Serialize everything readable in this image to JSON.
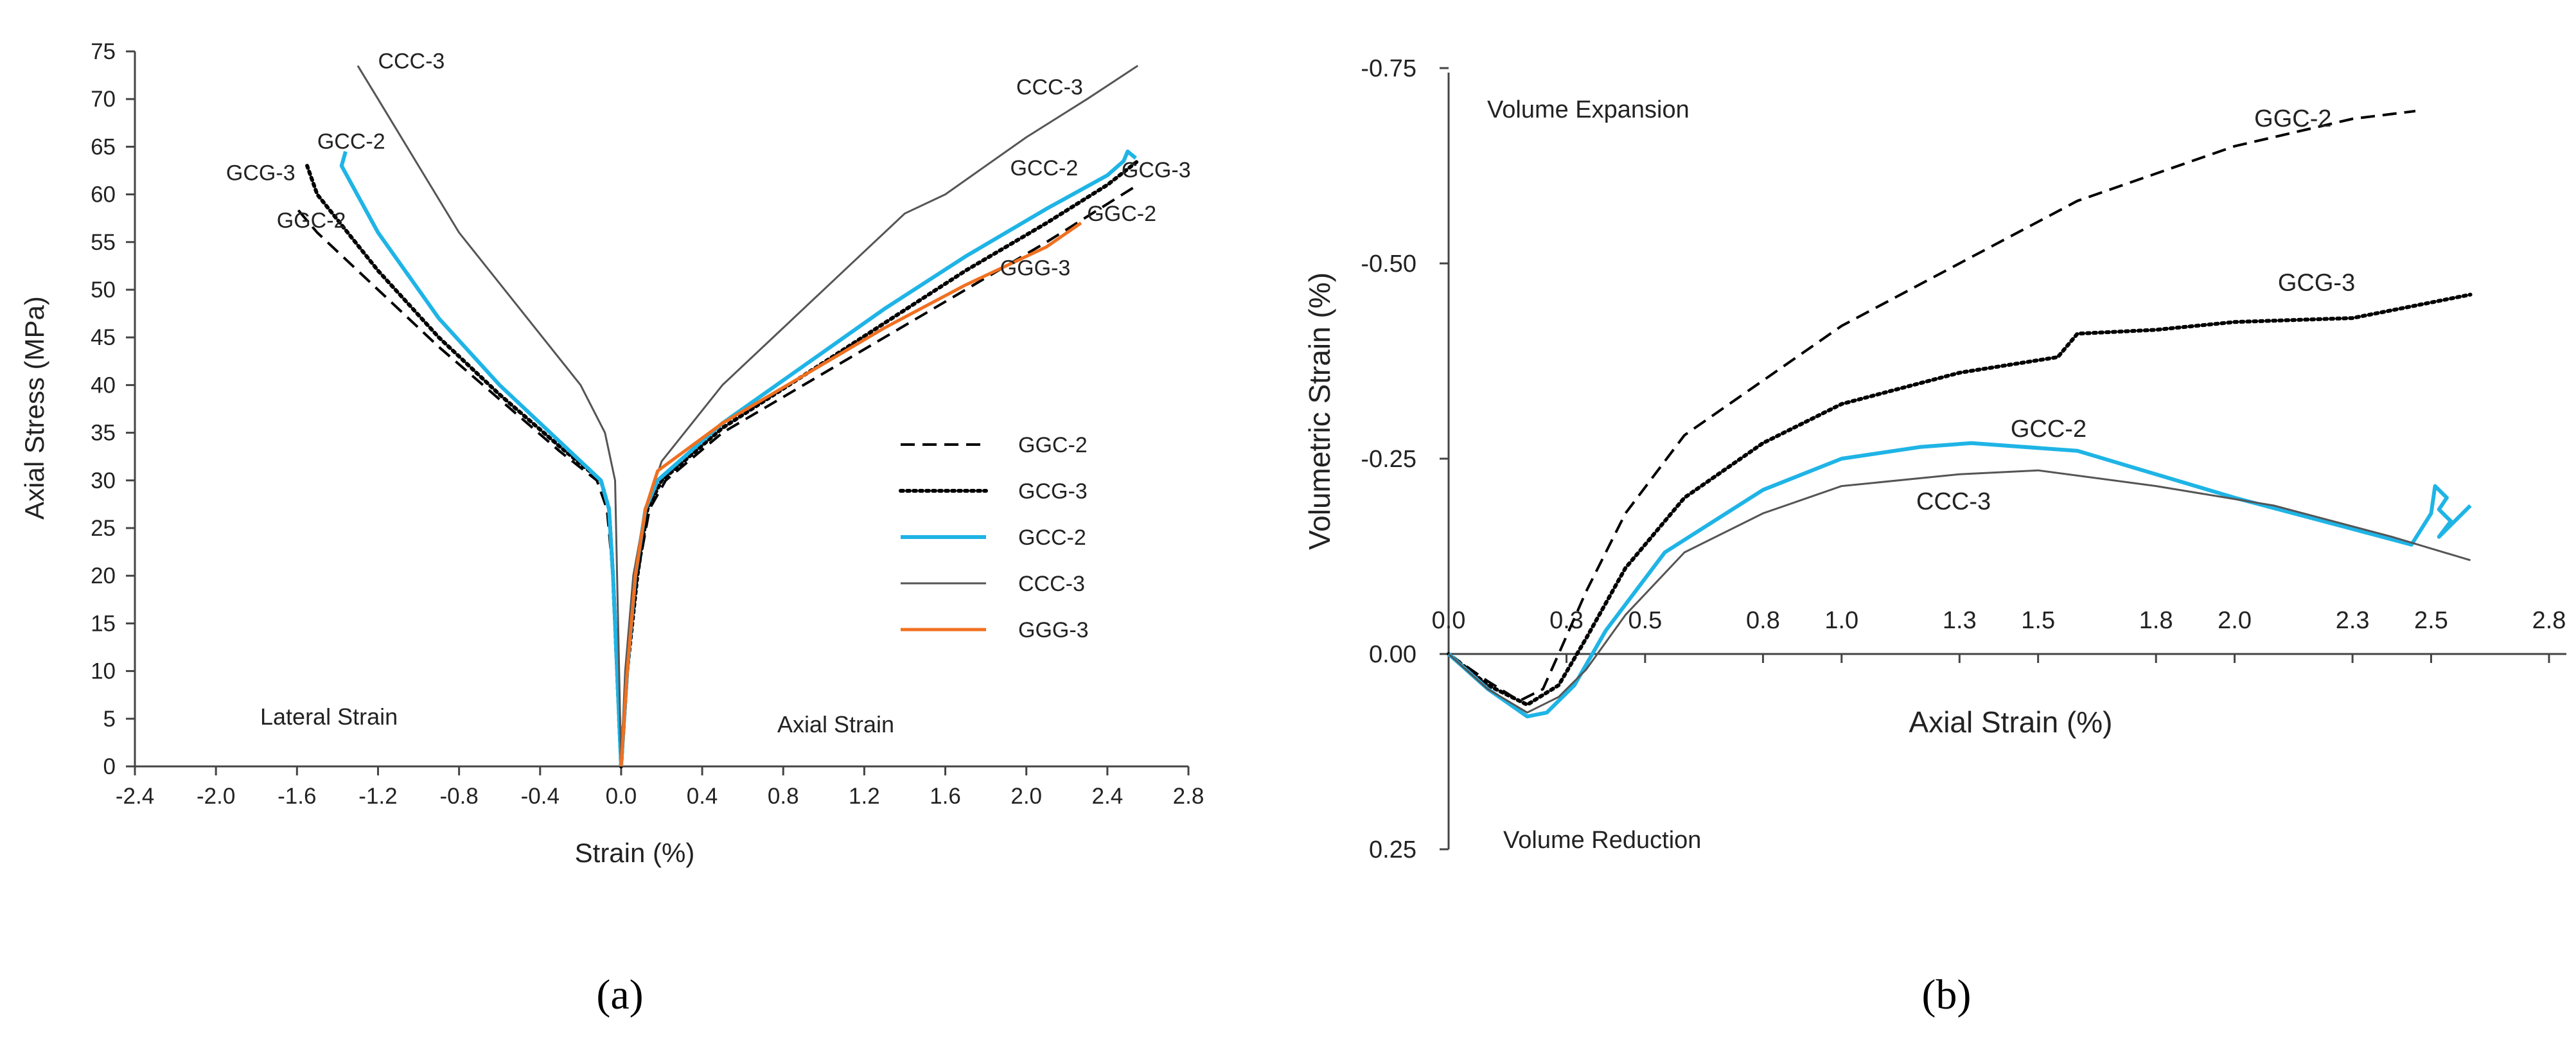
{
  "captions": {
    "a": "(a)",
    "b": "(b)"
  },
  "chart_data": [
    {
      "id": "a",
      "type": "line",
      "title": "",
      "xlabel": "Strain  (%)",
      "ylabel": "Axial Stress  (MPa)",
      "xlim": [
        -2.4,
        2.8
      ],
      "ylim": [
        0,
        75
      ],
      "xticks": [
        "-2.4",
        "-2.0",
        "-1.6",
        "-1.2",
        "-0.8",
        "-0.4",
        "0.0",
        "0.4",
        "0.8",
        "1.2",
        "1.6",
        "2.0",
        "2.4",
        "2.8"
      ],
      "yticks": [
        "0",
        "5",
        "10",
        "15",
        "20",
        "25",
        "30",
        "35",
        "40",
        "45",
        "50",
        "55",
        "60",
        "65",
        "70",
        "75"
      ],
      "grid": false,
      "legend": [
        "GGC-2",
        "GCG-3",
        "GCC-2",
        "CCC-3",
        "GGG-3"
      ],
      "legend_position": "center-right",
      "region_labels": {
        "left": "Lateral Strain",
        "right": "Axial Strain"
      },
      "series": [
        {
          "name": "GGC-2",
          "style": "dashed",
          "color": "#000000",
          "label_left": "GGC-2",
          "label_right": "GGC-2",
          "lateral": [
            [
              0,
              0
            ],
            [
              -0.02,
              10
            ],
            [
              -0.04,
              20
            ],
            [
              -0.07,
              27
            ],
            [
              -0.12,
              30
            ],
            [
              -0.3,
              33
            ],
            [
              -0.6,
              38.5
            ],
            [
              -0.9,
              44
            ],
            [
              -1.2,
              50
            ],
            [
              -1.5,
              56
            ],
            [
              -1.6,
              58.5
            ]
          ],
          "axial": [
            [
              0,
              0
            ],
            [
              0.03,
              10
            ],
            [
              0.08,
              20
            ],
            [
              0.14,
              27
            ],
            [
              0.22,
              30
            ],
            [
              0.5,
              35
            ],
            [
              0.9,
              40
            ],
            [
              1.3,
              45
            ],
            [
              1.7,
              50
            ],
            [
              2.1,
              55
            ],
            [
              2.4,
              59
            ],
            [
              2.55,
              61
            ]
          ]
        },
        {
          "name": "GCG-3",
          "style": "dotted",
          "color": "#000000",
          "label_left": "GCG-3",
          "label_right": "GCG-3",
          "lateral": [
            [
              0,
              0
            ],
            [
              -0.02,
              10
            ],
            [
              -0.04,
              20
            ],
            [
              -0.06,
              27
            ],
            [
              -0.1,
              30
            ],
            [
              -0.3,
              33.5
            ],
            [
              -0.6,
              39
            ],
            [
              -0.9,
              45
            ],
            [
              -1.2,
              52
            ],
            [
              -1.5,
              60
            ],
            [
              -1.55,
              63
            ]
          ],
          "axial": [
            [
              0,
              0
            ],
            [
              0.03,
              10
            ],
            [
              0.08,
              20
            ],
            [
              0.13,
              27
            ],
            [
              0.2,
              30
            ],
            [
              0.5,
              35.5
            ],
            [
              0.9,
              41
            ],
            [
              1.3,
              46.5
            ],
            [
              1.7,
              52
            ],
            [
              2.1,
              57
            ],
            [
              2.4,
              61
            ],
            [
              2.55,
              63.5
            ]
          ]
        },
        {
          "name": "GCC-2",
          "style": "solid",
          "color": "#1fb4e6",
          "label_left": "GCC-2",
          "label_right": "GCC-2",
          "lateral": [
            [
              0,
              0
            ],
            [
              -0.02,
              10
            ],
            [
              -0.04,
              20
            ],
            [
              -0.06,
              27
            ],
            [
              -0.1,
              30
            ],
            [
              -0.3,
              34
            ],
            [
              -0.6,
              40
            ],
            [
              -0.9,
              47
            ],
            [
              -1.2,
              56
            ],
            [
              -1.38,
              63
            ],
            [
              -1.36,
              64.5
            ]
          ],
          "axial": [
            [
              0,
              0
            ],
            [
              0.03,
              10
            ],
            [
              0.07,
              20
            ],
            [
              0.12,
              27
            ],
            [
              0.18,
              30
            ],
            [
              0.5,
              36
            ],
            [
              0.9,
              42
            ],
            [
              1.3,
              48
            ],
            [
              1.7,
              53.5
            ],
            [
              2.1,
              58.5
            ],
            [
              2.4,
              62
            ],
            [
              2.48,
              63.5
            ],
            [
              2.5,
              64.5
            ],
            [
              2.54,
              63.8
            ]
          ]
        },
        {
          "name": "CCC-3",
          "style": "solid",
          "color": "#555555",
          "label_left": "CCC-3",
          "label_right": "CCC-3",
          "lateral": [
            [
              0,
              0
            ],
            [
              -0.01,
              10
            ],
            [
              -0.02,
              20
            ],
            [
              -0.03,
              30
            ],
            [
              -0.08,
              35
            ],
            [
              -0.2,
              40
            ],
            [
              -0.5,
              48
            ],
            [
              -0.8,
              56
            ],
            [
              -1.0,
              63
            ],
            [
              -1.2,
              70
            ],
            [
              -1.3,
              73.5
            ]
          ],
          "axial": [
            [
              0,
              0
            ],
            [
              0.02,
              10
            ],
            [
              0.06,
              20
            ],
            [
              0.12,
              27
            ],
            [
              0.2,
              32
            ],
            [
              0.5,
              40
            ],
            [
              0.8,
              46
            ],
            [
              1.1,
              52
            ],
            [
              1.4,
              58
            ],
            [
              1.6,
              60
            ],
            [
              2.0,
              66
            ],
            [
              2.3,
              70
            ],
            [
              2.55,
              73.5
            ]
          ]
        },
        {
          "name": "GGG-3",
          "style": "solid",
          "color": "#f07020",
          "label_left": "",
          "label_right": "GGG-3",
          "lateral": [],
          "axial": [
            [
              0,
              0
            ],
            [
              0.03,
              10
            ],
            [
              0.07,
              20
            ],
            [
              0.12,
              27
            ],
            [
              0.18,
              31
            ],
            [
              0.5,
              36
            ],
            [
              0.9,
              41
            ],
            [
              1.3,
              46
            ],
            [
              1.7,
              50.5
            ],
            [
              2.1,
              54.5
            ],
            [
              2.27,
              57
            ]
          ]
        }
      ]
    },
    {
      "id": "b",
      "type": "line",
      "title": "",
      "xlabel": "Axial Strain  (%)",
      "ylabel": "Volumetric  Strain  (%)",
      "xlim": [
        0,
        2.8
      ],
      "ylim": [
        0.25,
        -0.75
      ],
      "xticks": [
        "0.0",
        "0.3",
        "0.5",
        "0.8",
        "1.0",
        "1.3",
        "1.5",
        "1.8",
        "2.0",
        "2.3",
        "2.5",
        "2.8"
      ],
      "yticks": [
        "0.25",
        "0.00",
        "-0.25",
        "-0.50",
        "-0.75"
      ],
      "grid": false,
      "annotations": {
        "top": "Volume Expansion",
        "bottom": "Volume Reduction"
      },
      "series": [
        {
          "name": "GGC-2",
          "style": "dashed",
          "color": "#000000",
          "label": "GGC-2",
          "points": [
            [
              0,
              0
            ],
            [
              0.1,
              0.035
            ],
            [
              0.18,
              0.06
            ],
            [
              0.24,
              0.045
            ],
            [
              0.28,
              0
            ],
            [
              0.35,
              -0.08
            ],
            [
              0.45,
              -0.18
            ],
            [
              0.6,
              -0.28
            ],
            [
              0.8,
              -0.35
            ],
            [
              1.0,
              -0.42
            ],
            [
              1.3,
              -0.5
            ],
            [
              1.6,
              -0.58
            ],
            [
              2.0,
              -0.65
            ],
            [
              2.3,
              -0.685
            ],
            [
              2.46,
              -0.695
            ]
          ]
        },
        {
          "name": "GCG-3",
          "style": "dotted",
          "color": "#000000",
          "label": "GCG-3",
          "points": [
            [
              0,
              0
            ],
            [
              0.1,
              0.04
            ],
            [
              0.2,
              0.065
            ],
            [
              0.28,
              0.04
            ],
            [
              0.35,
              -0.02
            ],
            [
              0.45,
              -0.11
            ],
            [
              0.6,
              -0.2
            ],
            [
              0.8,
              -0.27
            ],
            [
              1.0,
              -0.32
            ],
            [
              1.3,
              -0.36
            ],
            [
              1.55,
              -0.38
            ],
            [
              1.6,
              -0.41
            ],
            [
              1.8,
              -0.415
            ],
            [
              2.0,
              -0.425
            ],
            [
              2.3,
              -0.43
            ],
            [
              2.45,
              -0.445
            ],
            [
              2.6,
              -0.46
            ]
          ]
        },
        {
          "name": "GCC-2",
          "style": "solid",
          "color": "#1fb4e6",
          "label": "GCC-2",
          "points": [
            [
              0,
              0
            ],
            [
              0.1,
              0.045
            ],
            [
              0.2,
              0.08
            ],
            [
              0.25,
              0.075
            ],
            [
              0.32,
              0.04
            ],
            [
              0.4,
              -0.03
            ],
            [
              0.55,
              -0.13
            ],
            [
              0.8,
              -0.21
            ],
            [
              1.0,
              -0.25
            ],
            [
              1.2,
              -0.265
            ],
            [
              1.33,
              -0.27
            ],
            [
              1.6,
              -0.26
            ],
            [
              2.0,
              -0.2
            ],
            [
              2.3,
              -0.16
            ],
            [
              2.45,
              -0.14
            ],
            [
              2.5,
              -0.18
            ],
            [
              2.51,
              -0.215
            ],
            [
              2.54,
              -0.2
            ],
            [
              2.52,
              -0.185
            ],
            [
              2.55,
              -0.17
            ],
            [
              2.52,
              -0.15
            ],
            [
              2.6,
              -0.19
            ]
          ]
        },
        {
          "name": "CCC-3",
          "style": "solid",
          "color": "#555555",
          "label": "CCC-3",
          "points": [
            [
              0,
              0
            ],
            [
              0.1,
              0.045
            ],
            [
              0.2,
              0.075
            ],
            [
              0.28,
              0.055
            ],
            [
              0.35,
              0.02
            ],
            [
              0.45,
              -0.05
            ],
            [
              0.6,
              -0.13
            ],
            [
              0.8,
              -0.18
            ],
            [
              1.0,
              -0.215
            ],
            [
              1.3,
              -0.23
            ],
            [
              1.5,
              -0.235
            ],
            [
              1.8,
              -0.215
            ],
            [
              2.1,
              -0.19
            ],
            [
              2.4,
              -0.15
            ],
            [
              2.6,
              -0.12
            ]
          ]
        }
      ]
    }
  ]
}
